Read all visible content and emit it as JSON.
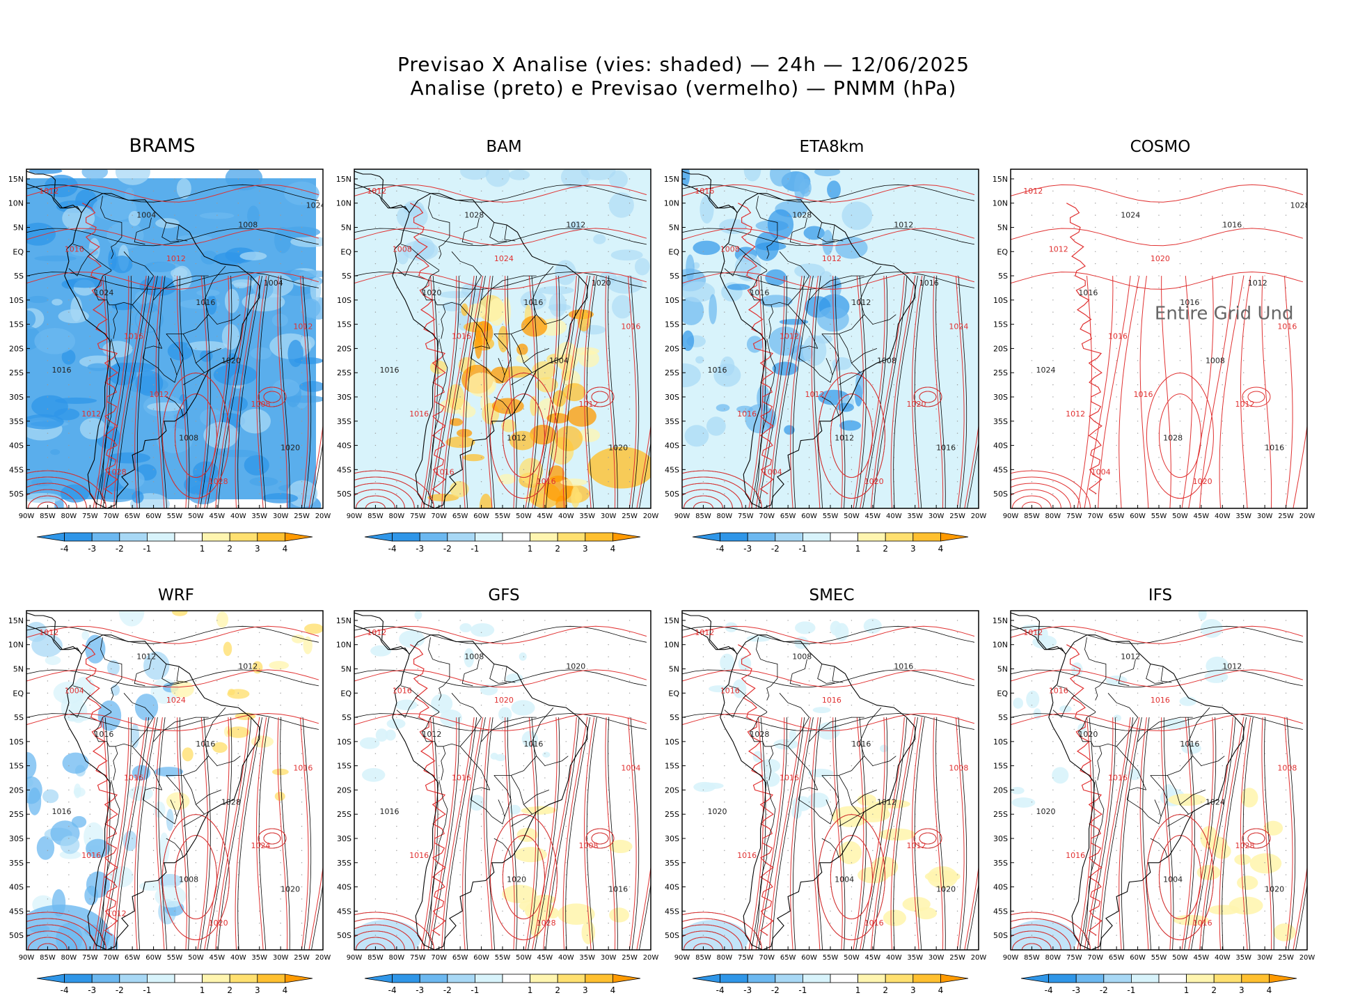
{
  "header": {
    "line1": "Previsao X Analise (vies: shaded) — 24h — 12/06/2025",
    "line2": "Analise (preto) e Previsao (vermelho) — PNMM (hPa)"
  },
  "colors": {
    "analysis_contour": "#000000",
    "forecast_contour": "#e03030",
    "bias_neg4": "#2f96e8",
    "bias_neg3": "#6cb8f0",
    "bias_neg2": "#a8d8f5",
    "bias_neg1": "#d8f3fb",
    "bias_pos1": "#fff5b0",
    "bias_pos2": "#ffe070",
    "bias_pos3": "#ffc030",
    "bias_pos4": "#ff9a00"
  },
  "axes": {
    "lat_labels": [
      "15N",
      "10N",
      "5N",
      "EQ",
      "5S",
      "10S",
      "15S",
      "20S",
      "25S",
      "30S",
      "35S",
      "40S",
      "45S",
      "50S"
    ],
    "lon_labels": [
      "90W",
      "85W",
      "80W",
      "75W",
      "70W",
      "65W",
      "60W",
      "55W",
      "50W",
      "45W",
      "40W",
      "35W",
      "30W",
      "25W",
      "20W"
    ]
  },
  "colorbar": {
    "labels": [
      "-4",
      "-3",
      "-2",
      "-1",
      "1",
      "2",
      "3",
      "4"
    ]
  },
  "panels": [
    {
      "name": "BRAMS",
      "bias": "neg",
      "labels": [
        "1012",
        "1016",
        "1012",
        "1008",
        "1016",
        "1020",
        "1012",
        "1016",
        "1028",
        "1024",
        "1008",
        "1004",
        "1012",
        "1008",
        "1016",
        "1020",
        "1028",
        "1004",
        "1012",
        "1024"
      ]
    },
    {
      "name": "BAM",
      "bias": "pos",
      "labels": [
        "1012",
        "1016",
        "1016",
        "1012",
        "1016",
        "1020",
        "1024",
        "1016",
        "1016",
        "1020",
        "1012",
        "1028",
        "1016",
        "1012",
        "1008",
        "1004",
        "1016",
        "1020"
      ]
    },
    {
      "name": "ETA8km",
      "bias": "neg",
      "labels": [
        "1016",
        "1012",
        "1016",
        "1012",
        "1012",
        "1016",
        "1012",
        "1016",
        "1020",
        "1016",
        "1020",
        "1028",
        "1024",
        "1012",
        "1008",
        "1008",
        "1004",
        "1016",
        "1012"
      ]
    },
    {
      "name": "COSMO",
      "bias": "none",
      "note": "Entire Grid Und",
      "labels": [
        "1012",
        "1016",
        "1012",
        "1016",
        "1016",
        "1016",
        "1020",
        "1024",
        "1020",
        "1016",
        "1012",
        "1024",
        "1016",
        "1028",
        "1012",
        "1008",
        "1004",
        "1012",
        "1016",
        "1028"
      ]
    },
    {
      "name": "WRF",
      "bias": "mixed",
      "labels": [
        "1012",
        "1016",
        "1016",
        "1012",
        "1016",
        "1020",
        "1024",
        "1016",
        "1020",
        "1016",
        "1024",
        "1012",
        "1016",
        "1008",
        "1004",
        "1028",
        "1012"
      ]
    },
    {
      "name": "GFS",
      "bias": "light",
      "labels": [
        "1012",
        "1016",
        "1016",
        "1020",
        "1016",
        "1016",
        "1020",
        "1016",
        "1028",
        "1012",
        "1008",
        "1008",
        "1004",
        "1020",
        "1016"
      ]
    },
    {
      "name": "SMEC",
      "bias": "light",
      "labels": [
        "1012",
        "1016",
        "1016",
        "1016",
        "1016",
        "1020",
        "1016",
        "1020",
        "1016",
        "1028",
        "1012",
        "1008",
        "1008",
        "1004",
        "1016",
        "1012"
      ]
    },
    {
      "name": "IFS",
      "bias": "light",
      "labels": [
        "1012",
        "1016",
        "1016",
        "1012",
        "1016",
        "1020",
        "1016",
        "1020",
        "1016",
        "1020",
        "1028",
        "1012",
        "1008",
        "1004",
        "1016",
        "1024"
      ]
    }
  ]
}
